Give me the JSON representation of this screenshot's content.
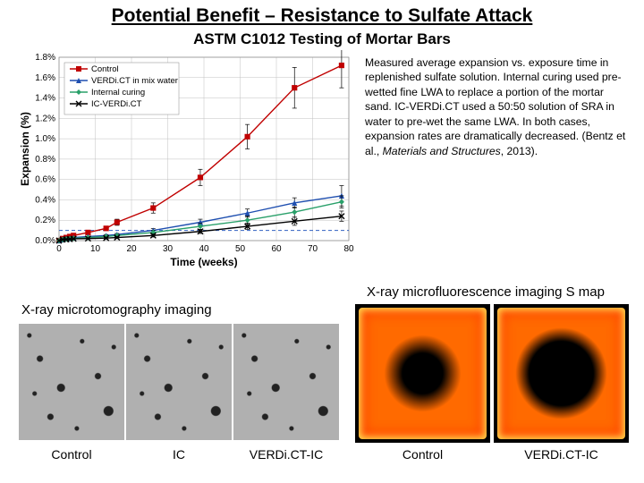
{
  "title": "Potential Benefit – Resistance to Sulfate Attack",
  "subtitle": "ASTM C1012 Testing of Mortar Bars",
  "caption_parts": {
    "p1": "Measured average expansion vs. exposure time in replenished sulfate solution. Internal curing used pre-wetted fine LWA to replace a portion of the mortar sand. IC-VERDi.CT used a 50:50 solution of SRA in water to pre-wet the same LWA. In both cases, expansion rates are dramatically decreased. (Bentz et al., ",
    "ital": "Materials and Structures",
    "p2": ", 2013)."
  },
  "label_microfluo": "X-ray microfluorescence imaging S map",
  "label_microtomo": "X-ray microtomography imaging",
  "ct_labels": [
    "Control",
    "IC",
    "VERDi.CT-IC"
  ],
  "micro_labels": [
    "Control",
    "VERDi.CT-IC"
  ],
  "chart": {
    "type": "line",
    "xlabel": "Time (weeks)",
    "ylabel": "Expansion (%)",
    "xlim": [
      0,
      80
    ],
    "ylim": [
      0.0,
      1.8
    ],
    "xtick_step": 10,
    "ytick_step": 0.2,
    "grid_color": "#c0c0c0",
    "background_color": "#ffffff",
    "axis_label_fontsize": 12,
    "tick_fontsize": 10,
    "marker_size": 4,
    "line_width": 1.4,
    "failure_line": {
      "y": 0.1,
      "color": "#3060c0",
      "dash": "4 3"
    },
    "series": [
      {
        "name": "Control",
        "color": "#c00000",
        "marker": "square",
        "x": [
          0,
          1,
          2,
          3,
          4,
          8,
          13,
          16,
          26,
          39,
          52,
          65,
          78
        ],
        "y": [
          0.0,
          0.02,
          0.03,
          0.04,
          0.05,
          0.08,
          0.12,
          0.18,
          0.32,
          0.62,
          1.02,
          1.5,
          1.72
        ],
        "err": [
          0,
          0,
          0,
          0,
          0,
          0,
          0.02,
          0.03,
          0.05,
          0.08,
          0.12,
          0.2,
          0.22
        ]
      },
      {
        "name": "VERDi.CT in mix water",
        "color": "#1f4fb0",
        "marker": "triangle",
        "x": [
          0,
          1,
          2,
          3,
          4,
          8,
          13,
          16,
          26,
          39,
          52,
          65,
          78
        ],
        "y": [
          0.0,
          0.01,
          0.02,
          0.02,
          0.03,
          0.04,
          0.05,
          0.06,
          0.1,
          0.18,
          0.27,
          0.37,
          0.44
        ],
        "err": [
          0,
          0,
          0,
          0,
          0,
          0,
          0.01,
          0.01,
          0.02,
          0.03,
          0.04,
          0.05,
          0.1
        ]
      },
      {
        "name": "Internal curing",
        "color": "#2aa06a",
        "marker": "diamond",
        "x": [
          0,
          1,
          2,
          3,
          4,
          8,
          13,
          16,
          26,
          39,
          52,
          65,
          78
        ],
        "y": [
          0.0,
          0.01,
          0.015,
          0.02,
          0.022,
          0.03,
          0.04,
          0.05,
          0.08,
          0.14,
          0.2,
          0.28,
          0.38
        ],
        "err": [
          0,
          0,
          0,
          0,
          0,
          0,
          0.01,
          0.01,
          0.02,
          0.03,
          0.04,
          0.05,
          0.06
        ]
      },
      {
        "name": "IC-VERDi.CT",
        "color": "#000000",
        "marker": "cross",
        "x": [
          0,
          1,
          2,
          3,
          4,
          8,
          13,
          16,
          26,
          39,
          52,
          65,
          78
        ],
        "y": [
          0.0,
          0.01,
          0.012,
          0.015,
          0.018,
          0.02,
          0.025,
          0.03,
          0.05,
          0.09,
          0.14,
          0.19,
          0.24
        ],
        "err": [
          0,
          0,
          0,
          0,
          0,
          0,
          0.01,
          0.01,
          0.015,
          0.02,
          0.03,
          0.04,
          0.05
        ]
      }
    ]
  }
}
